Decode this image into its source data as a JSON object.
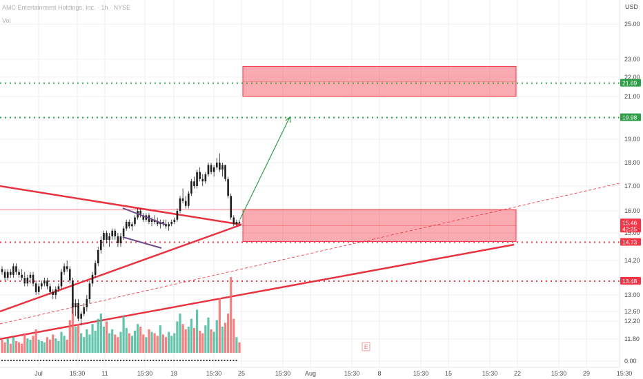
{
  "header": {
    "symbol_line": "AMC Entertainment Holdings, Inc. · 1h · NYSE",
    "volume_label": "Vol"
  },
  "currency": "USD",
  "chart_data": {
    "type": "candlestick",
    "title": "AMC Entertainment Holdings, Inc. · 1h · NYSE",
    "ylim": [
      0,
      26
    ],
    "y_ticks": [
      "0.00",
      "11.80",
      "12.20",
      "12.60",
      "13.00",
      "14.20",
      "15.00",
      "16.00",
      "17.00",
      "18.00",
      "19.00",
      "20.00",
      "21.00",
      "22.00",
      "23.00",
      "25.00"
    ],
    "x_ticks": [
      "Jul",
      "15:30",
      "11",
      "15:30",
      "18",
      "15:30",
      "25",
      "15:30",
      "Aug",
      "15:30",
      "8",
      "15:30",
      "15",
      "15:30",
      "22",
      "15:30",
      "29",
      "15:30"
    ],
    "price_badges": [
      {
        "label": "21.69",
        "value": 21.69,
        "color": "#2e9e48"
      },
      {
        "label": "19.98",
        "value": 19.98,
        "color": "#2e9e48"
      },
      {
        "label": "15.46",
        "sublabel": "42:25",
        "value": 15.46,
        "color": "#f23645"
      },
      {
        "label": "14.73",
        "value": 14.73,
        "color": "#f23645"
      },
      {
        "label": "13.48",
        "value": 13.48,
        "color": "#f23645"
      }
    ],
    "horizontal_levels": [
      {
        "value": 21.69,
        "style": "dotted",
        "color": "#2e9e48"
      },
      {
        "value": 19.98,
        "style": "dotted",
        "color": "#2e9e48"
      },
      {
        "value": 14.73,
        "style": "dotted",
        "color": "#f23645"
      },
      {
        "value": 13.48,
        "style": "dotted",
        "color": "#f23645"
      }
    ],
    "zones": [
      {
        "y_from": 21.0,
        "y_to": 22.6,
        "color": "#f23645"
      },
      {
        "y_from": 14.75,
        "y_to": 16.05,
        "color": "#f23645"
      }
    ],
    "event_marker": "E",
    "candles": [
      [
        13.9,
        14.0,
        13.7,
        13.8
      ],
      [
        13.8,
        13.9,
        13.5,
        13.6
      ],
      [
        13.6,
        13.9,
        13.5,
        13.8
      ],
      [
        13.8,
        13.9,
        13.6,
        13.7
      ],
      [
        13.7,
        14.1,
        13.6,
        14.0
      ],
      [
        14.0,
        14.1,
        13.7,
        13.8
      ],
      [
        13.8,
        13.9,
        13.6,
        13.7
      ],
      [
        13.7,
        13.9,
        13.5,
        13.6
      ],
      [
        13.6,
        13.8,
        13.3,
        13.4
      ],
      [
        13.4,
        13.7,
        13.3,
        13.6
      ],
      [
        13.6,
        13.8,
        13.4,
        13.7
      ],
      [
        13.7,
        13.8,
        13.3,
        13.4
      ],
      [
        13.4,
        13.5,
        13.0,
        13.1
      ],
      [
        13.1,
        13.4,
        13.0,
        13.3
      ],
      [
        13.3,
        13.5,
        13.2,
        13.4
      ],
      [
        13.4,
        13.6,
        13.3,
        13.5
      ],
      [
        13.5,
        13.6,
        13.2,
        13.3
      ],
      [
        13.3,
        13.4,
        13.0,
        13.1
      ],
      [
        13.1,
        13.2,
        12.9,
        13.0
      ],
      [
        13.0,
        13.3,
        12.9,
        13.2
      ],
      [
        13.2,
        13.4,
        13.1,
        13.3
      ],
      [
        13.3,
        13.9,
        13.2,
        13.8
      ],
      [
        13.8,
        14.1,
        13.7,
        14.0
      ],
      [
        14.0,
        14.2,
        13.8,
        13.9
      ],
      [
        13.9,
        14.0,
        13.4,
        13.5
      ],
      [
        13.5,
        13.6,
        12.5,
        12.7
      ],
      [
        12.7,
        12.9,
        12.4,
        12.8
      ],
      [
        12.8,
        12.9,
        12.2,
        12.3
      ],
      [
        12.3,
        12.6,
        12.1,
        12.5
      ],
      [
        12.5,
        12.8,
        12.4,
        12.7
      ],
      [
        12.7,
        13.0,
        12.6,
        12.9
      ],
      [
        12.9,
        13.5,
        12.8,
        13.4
      ],
      [
        13.4,
        13.8,
        13.3,
        13.7
      ],
      [
        13.7,
        14.2,
        13.6,
        14.1
      ],
      [
        14.1,
        14.6,
        14.0,
        14.5
      ],
      [
        14.5,
        14.9,
        14.4,
        14.8
      ],
      [
        14.8,
        15.1,
        14.6,
        15.0
      ],
      [
        15.0,
        15.1,
        14.7,
        14.8
      ],
      [
        14.8,
        15.0,
        14.6,
        14.9
      ],
      [
        14.9,
        15.2,
        14.8,
        15.1
      ],
      [
        15.1,
        15.2,
        14.8,
        14.9
      ],
      [
        14.9,
        15.0,
        14.6,
        14.7
      ],
      [
        14.7,
        15.0,
        14.6,
        14.9
      ],
      [
        14.9,
        15.3,
        14.8,
        15.2
      ],
      [
        15.2,
        15.6,
        15.1,
        15.5
      ],
      [
        15.5,
        15.6,
        15.2,
        15.3
      ],
      [
        15.3,
        15.5,
        15.1,
        15.4
      ],
      [
        15.4,
        15.8,
        15.3,
        15.7
      ],
      [
        15.7,
        16.1,
        15.6,
        16.0
      ],
      [
        16.0,
        16.1,
        15.7,
        15.8
      ],
      [
        15.8,
        15.9,
        15.5,
        15.6
      ],
      [
        15.6,
        15.9,
        15.5,
        15.8
      ],
      [
        15.8,
        15.9,
        15.4,
        15.5
      ],
      [
        15.5,
        15.7,
        15.3,
        15.6
      ],
      [
        15.6,
        15.8,
        15.4,
        15.5
      ],
      [
        15.5,
        15.7,
        15.3,
        15.4
      ],
      [
        15.4,
        15.6,
        15.2,
        15.5
      ],
      [
        15.5,
        15.6,
        15.3,
        15.4
      ],
      [
        15.4,
        15.6,
        15.2,
        15.3
      ],
      [
        15.3,
        15.5,
        15.1,
        15.4
      ],
      [
        15.4,
        15.6,
        15.3,
        15.5
      ],
      [
        15.5,
        15.7,
        15.4,
        15.6
      ],
      [
        15.6,
        16.1,
        15.5,
        16.0
      ],
      [
        16.0,
        16.6,
        15.9,
        16.5
      ],
      [
        16.5,
        16.9,
        16.3,
        16.4
      ],
      [
        16.4,
        16.6,
        16.1,
        16.2
      ],
      [
        16.2,
        16.8,
        16.1,
        16.7
      ],
      [
        16.7,
        17.3,
        16.6,
        17.2
      ],
      [
        17.2,
        17.4,
        16.9,
        17.0
      ],
      [
        17.0,
        17.7,
        16.9,
        17.6
      ],
      [
        17.6,
        17.8,
        17.2,
        17.3
      ],
      [
        17.3,
        17.5,
        17.0,
        17.2
      ],
      [
        17.2,
        17.6,
        17.1,
        17.5
      ],
      [
        17.5,
        18.0,
        17.4,
        17.9
      ],
      [
        17.9,
        18.0,
        17.5,
        17.6
      ],
      [
        17.6,
        17.9,
        17.4,
        17.8
      ],
      [
        17.8,
        18.2,
        17.7,
        18.0
      ],
      [
        18.0,
        18.4,
        17.6,
        17.7
      ],
      [
        17.7,
        18.0,
        17.4,
        17.9
      ],
      [
        17.9,
        17.9,
        17.2,
        17.3
      ],
      [
        17.3,
        17.4,
        16.5,
        16.6
      ],
      [
        16.6,
        16.7,
        15.6,
        15.7
      ],
      [
        15.7,
        15.8,
        15.3,
        15.4
      ],
      [
        15.4,
        15.6,
        15.3,
        15.5
      ],
      [
        15.5,
        15.6,
        15.4,
        15.46
      ]
    ],
    "volumes": [
      10,
      8,
      11,
      7,
      12,
      9,
      8,
      7,
      15,
      11,
      10,
      13,
      18,
      10,
      9,
      8,
      12,
      10,
      14,
      11,
      9,
      16,
      13,
      10,
      25,
      38,
      20,
      22,
      15,
      12,
      18,
      14,
      22,
      17,
      26,
      30,
      20,
      24,
      15,
      18,
      14,
      12,
      16,
      28,
      19,
      15,
      13,
      17,
      22,
      20,
      14,
      12,
      18,
      16,
      15,
      13,
      21,
      14,
      12,
      16,
      13,
      15,
      24,
      30,
      22,
      18,
      20,
      26,
      19,
      33,
      17,
      15,
      21,
      27,
      18,
      16,
      25,
      42,
      20,
      23,
      30,
      58,
      26,
      12,
      8
    ],
    "volume_colors": "alternating green/red by candle direction"
  }
}
